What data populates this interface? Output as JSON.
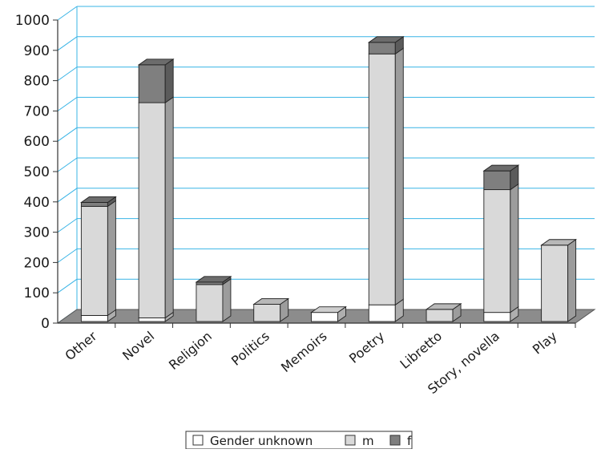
{
  "chart_data": {
    "type": "bar",
    "stacked": true,
    "three_d": true,
    "title": "",
    "xlabel": "",
    "ylabel": "",
    "ylim": [
      0,
      1000
    ],
    "yticks": [
      0,
      100,
      200,
      300,
      400,
      500,
      600,
      700,
      800,
      900,
      1000
    ],
    "grid": true,
    "legend_position": "bottom",
    "categories": [
      "Other",
      "Novel",
      "Religion",
      "Politics",
      "Memoirs",
      "Poetry",
      "Libretto",
      "Story, novella",
      "Play"
    ],
    "series": [
      {
        "name": "Gender unknown",
        "color": "#ffffff",
        "values": [
          20,
          12,
          0,
          0,
          30,
          55,
          0,
          30,
          0
        ]
      },
      {
        "name": "m",
        "color": "#d9d9d9",
        "values": [
          360,
          710,
          122,
          57,
          0,
          828,
          40,
          405,
          252
        ]
      },
      {
        "name": "f",
        "color": "#7f7f7f",
        "values": [
          13,
          125,
          8,
          0,
          0,
          38,
          0,
          62,
          0
        ]
      }
    ],
    "colors": {
      "grid": "#39b4e6",
      "floor": "#8c8c8c",
      "axis": "#333333"
    }
  }
}
